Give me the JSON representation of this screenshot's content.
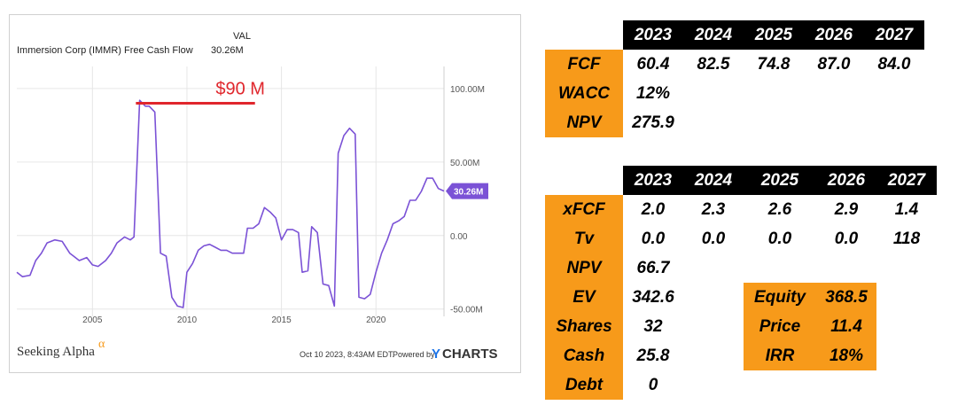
{
  "chart": {
    "val_header": "VAL",
    "series_name": "Immersion Corp (IMMR) Free Cash Flow",
    "current_value": "30.26M",
    "badge_value": "30.26M",
    "annotation": "$90 M",
    "y_ticks": [
      "100.00M",
      "50.00M",
      "0.00",
      "-50.00M"
    ],
    "x_ticks": [
      "2005",
      "2010",
      "2015",
      "2020"
    ],
    "timestamp": "Oct 10 2023, 8:43AM EDT.",
    "powered_by": "Powered by",
    "ycharts_logo": "YCHARTS",
    "seeking_alpha_logo": "Seeking Alpha",
    "alpha_glyph": "α"
  },
  "chart_data": {
    "type": "line",
    "title": "Immersion Corp (IMMR) Free Cash Flow",
    "xlabel": "",
    "ylabel": "",
    "ylim": [
      -55,
      115
    ],
    "xlim": [
      2001,
      2023.6
    ],
    "grid": true,
    "series": [
      {
        "name": "Immersion Corp (IMMR) Free Cash Flow",
        "x": [
          2001.0,
          2001.3,
          2001.7,
          2002.0,
          2002.3,
          2002.6,
          2003.0,
          2003.4,
          2003.8,
          2004.0,
          2004.3,
          2004.7,
          2005.0,
          2005.3,
          2005.7,
          2006.0,
          2006.3,
          2006.7,
          2007.0,
          2007.2,
          2007.5,
          2007.8,
          2008.0,
          2008.3,
          2008.6,
          2008.9,
          2009.2,
          2009.5,
          2009.8,
          2010.0,
          2010.3,
          2010.6,
          2010.9,
          2011.2,
          2011.5,
          2011.8,
          2012.1,
          2012.4,
          2012.7,
          2013.0,
          2013.2,
          2013.5,
          2013.8,
          2014.1,
          2014.4,
          2014.7,
          2015.0,
          2015.3,
          2015.6,
          2015.9,
          2016.1,
          2016.4,
          2016.6,
          2016.9,
          2017.2,
          2017.5,
          2017.8,
          2018.0,
          2018.3,
          2018.6,
          2018.9,
          2019.1,
          2019.4,
          2019.7,
          2020.0,
          2020.3,
          2020.6,
          2020.9,
          2021.2,
          2021.5,
          2021.8,
          2022.1,
          2022.4,
          2022.7,
          2023.0,
          2023.3,
          2023.6
        ],
        "values": [
          -25,
          -28,
          -27,
          -17,
          -12,
          -5,
          -3,
          -4,
          -12,
          -14,
          -17,
          -15,
          -20,
          -21,
          -17,
          -12,
          -5,
          -1,
          -3,
          -1,
          92,
          88,
          88,
          84,
          -12,
          -14,
          -42,
          -48,
          -49,
          -25,
          -19,
          -10,
          -7,
          -6,
          -8,
          -10,
          -10,
          -12,
          -12,
          -12,
          5,
          5,
          8,
          19,
          16,
          12,
          -3,
          4,
          4,
          2,
          -25,
          -24,
          6,
          2,
          -33,
          -34,
          -48,
          56,
          68,
          73,
          69,
          -42,
          -43,
          -40,
          -25,
          -12,
          -3,
          8,
          10,
          13,
          24,
          24,
          30,
          39,
          39,
          32,
          30.26
        ]
      }
    ],
    "annotations": [
      {
        "label": "$90 M",
        "value": 90,
        "x_start": 2007.3,
        "x_end": 2013.6
      }
    ]
  },
  "table1": {
    "years": [
      "2023",
      "2024",
      "2025",
      "2026",
      "2027"
    ],
    "rows": [
      {
        "label": "FCF",
        "values": [
          "60.4",
          "82.5",
          "74.8",
          "87.0",
          "84.0"
        ]
      },
      {
        "label": "WACC",
        "values": [
          "12%",
          "",
          "",
          "",
          ""
        ]
      },
      {
        "label": "NPV",
        "values": [
          "275.9",
          "",
          "",
          "",
          ""
        ]
      }
    ]
  },
  "table2": {
    "years": [
      "2023",
      "2024",
      "2025",
      "2026",
      "2027"
    ],
    "rows": [
      {
        "label": "xFCF",
        "values": [
          "2.0",
          "2.3",
          "2.6",
          "2.9",
          "1.4"
        ]
      },
      {
        "label": "Tv",
        "values": [
          "0.0",
          "0.0",
          "0.0",
          "0.0",
          "118"
        ]
      },
      {
        "label": "NPV",
        "values": [
          "66.7",
          "",
          "",
          "",
          ""
        ]
      },
      {
        "label": "EV",
        "values": [
          "342.6",
          "",
          "",
          "",
          ""
        ]
      },
      {
        "label": "Shares",
        "values": [
          "32",
          "",
          "",
          "",
          ""
        ]
      },
      {
        "label": "Cash",
        "values": [
          "25.8",
          "",
          "",
          "",
          ""
        ]
      },
      {
        "label": "Debt",
        "values": [
          "0",
          "",
          "",
          "",
          ""
        ]
      }
    ],
    "summary": [
      {
        "label": "Equity",
        "value": "368.5"
      },
      {
        "label": "Price",
        "value": "11.4"
      },
      {
        "label": "IRR",
        "value": "18%"
      }
    ]
  },
  "colors": {
    "line": "#7b52d6",
    "annotation": "#e0262c",
    "label_bg": "#f79a1a",
    "header_bg": "#000000",
    "ycharts_accent": "#1a73e8"
  }
}
